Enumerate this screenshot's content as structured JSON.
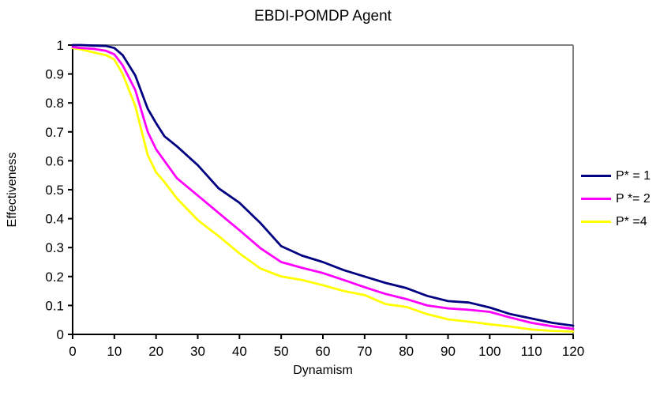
{
  "chart_data": {
    "type": "line",
    "title": "EBDI-POMDP Agent",
    "xlabel": "Dynamism",
    "ylabel": "Effectiveness",
    "xlim": [
      0,
      120
    ],
    "ylim": [
      0,
      1
    ],
    "x_ticks": [
      0,
      10,
      20,
      30,
      40,
      50,
      60,
      70,
      80,
      90,
      100,
      110,
      120
    ],
    "x_tick_labels": [
      "0",
      "10",
      "20",
      "30",
      "40",
      "50",
      "60",
      "70",
      "80",
      "90",
      "100",
      "110",
      "120"
    ],
    "y_ticks": [
      0,
      0.1,
      0.2,
      0.3,
      0.4,
      0.5,
      0.6,
      0.7,
      0.8,
      0.9,
      1
    ],
    "y_tick_labels": [
      "0",
      "0.1",
      "0.2",
      "0.3",
      "0.4",
      "0.5",
      "0.6",
      "0.7",
      "0.8",
      "0.9",
      "1"
    ],
    "grid": "off",
    "legend_position": "right-outside",
    "plot_border_color": "#808080",
    "axis_color": "#000000",
    "x": [
      0,
      2,
      5,
      8,
      10,
      12,
      15,
      18,
      20,
      22,
      25,
      30,
      35,
      40,
      45,
      50,
      55,
      60,
      65,
      70,
      75,
      80,
      85,
      90,
      95,
      100,
      105,
      110,
      115,
      120
    ],
    "series": [
      {
        "name": "P* = 1",
        "color": "#000080",
        "values": [
          1.0,
          1.0,
          0.998,
          0.997,
          0.99,
          0.965,
          0.895,
          0.78,
          0.73,
          0.685,
          0.65,
          0.585,
          0.505,
          0.455,
          0.385,
          0.305,
          0.272,
          0.25,
          0.222,
          0.2,
          0.178,
          0.16,
          0.133,
          0.115,
          0.11,
          0.093,
          0.07,
          0.055,
          0.04,
          0.03
        ]
      },
      {
        "name": "P *= 2",
        "color": "#FF00FF",
        "values": [
          0.993,
          0.99,
          0.987,
          0.98,
          0.968,
          0.93,
          0.845,
          0.7,
          0.64,
          0.6,
          0.54,
          0.48,
          0.42,
          0.36,
          0.298,
          0.25,
          0.23,
          0.212,
          0.188,
          0.163,
          0.14,
          0.122,
          0.1,
          0.09,
          0.085,
          0.078,
          0.058,
          0.04,
          0.028,
          0.019
        ]
      },
      {
        "name": "P* =4",
        "color": "#FFFF00",
        "values": [
          0.99,
          0.985,
          0.975,
          0.965,
          0.95,
          0.9,
          0.79,
          0.62,
          0.56,
          0.527,
          0.47,
          0.395,
          0.34,
          0.28,
          0.228,
          0.2,
          0.188,
          0.17,
          0.15,
          0.136,
          0.105,
          0.095,
          0.07,
          0.052,
          0.044,
          0.035,
          0.027,
          0.017,
          0.012,
          0.01
        ]
      }
    ]
  }
}
